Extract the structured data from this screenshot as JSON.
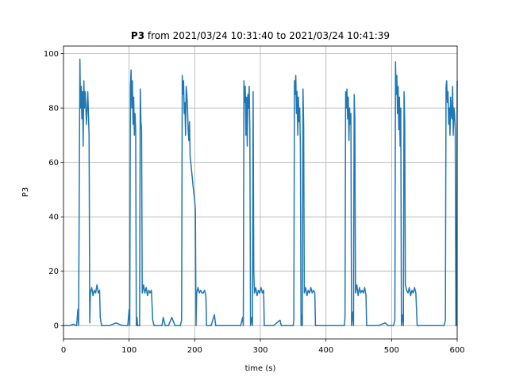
{
  "chart_data": {
    "type": "line",
    "title": {
      "bold": "P3",
      "text": "from 2021/03/24 10:31:40 to 2021/03/24 10:41:39"
    },
    "xlabel": "time (s)",
    "ylabel": "P3",
    "color": "#1f77b4",
    "grid": true,
    "xlim": [
      0,
      600
    ],
    "ylim": [
      -4.9,
      102.8
    ],
    "xticks": [
      0,
      100,
      200,
      300,
      400,
      500,
      600
    ],
    "yticks": [
      0,
      20,
      40,
      60,
      80,
      100
    ],
    "x": [
      0,
      10,
      15,
      20,
      22,
      23,
      25,
      26,
      27,
      28,
      29,
      30,
      31,
      32,
      33,
      35,
      37,
      38,
      39,
      40,
      41,
      43,
      45,
      47,
      49,
      51,
      53,
      55,
      56,
      58,
      70,
      80,
      90,
      98,
      100,
      101,
      102,
      103,
      104,
      105,
      106,
      107,
      108,
      109,
      110,
      111,
      112,
      113,
      116,
      117,
      118,
      119,
      120,
      122,
      124,
      126,
      128,
      130,
      132,
      134,
      136,
      138,
      150,
      152,
      155,
      160,
      165,
      170,
      178,
      180,
      181,
      182,
      183,
      184,
      185,
      186,
      187,
      188,
      189,
      190,
      191,
      192,
      193,
      194,
      196,
      198,
      200,
      201,
      202,
      203,
      205,
      207,
      209,
      211,
      213,
      215,
      217,
      218,
      225,
      230,
      232,
      260,
      270,
      273,
      274,
      275,
      276,
      277,
      278,
      279,
      280,
      281,
      282,
      283,
      284,
      285,
      287,
      288,
      289,
      290,
      291,
      293,
      295,
      297,
      299,
      301,
      303,
      305,
      306,
      320,
      330,
      332,
      350,
      351,
      352,
      353,
      354,
      355,
      356,
      357,
      358,
      359,
      360,
      361,
      362,
      363,
      364,
      365,
      366,
      367,
      369,
      371,
      373,
      375,
      377,
      379,
      381,
      383,
      384,
      400,
      410,
      428,
      429,
      430,
      431,
      432,
      433,
      434,
      435,
      436,
      437,
      438,
      439,
      441,
      442,
      443,
      444,
      445,
      447,
      449,
      451,
      453,
      455,
      457,
      459,
      461,
      462,
      480,
      490,
      495,
      503,
      505,
      506,
      507,
      508,
      509,
      510,
      511,
      512,
      513,
      514,
      515,
      517,
      518,
      519,
      520,
      521,
      523,
      525,
      527,
      529,
      531,
      533,
      535,
      537,
      539,
      560,
      570,
      580,
      582,
      583,
      584,
      585,
      586,
      587,
      588,
      589,
      590,
      591,
      592,
      593,
      594,
      595,
      596,
      597,
      598,
      599,
      600
    ],
    "values": [
      0,
      0,
      0.5,
      0,
      6,
      0,
      98,
      80,
      88,
      76,
      86,
      66,
      90,
      80,
      86,
      74,
      86,
      78,
      70,
      1,
      12,
      14,
      11,
      13,
      12,
      15,
      12,
      13,
      3,
      0,
      0,
      1,
      0,
      0,
      6,
      0,
      88,
      94,
      80,
      90,
      74,
      84,
      70,
      78,
      72,
      0,
      3,
      0,
      0,
      87,
      75,
      72,
      12,
      15,
      12,
      14,
      11,
      13,
      12,
      13,
      2,
      0,
      0,
      3,
      0,
      0,
      3,
      0,
      0,
      2,
      92,
      85,
      90,
      78,
      82,
      70,
      88,
      85,
      80,
      72,
      68,
      75,
      62,
      60,
      55,
      50,
      46,
      42,
      0,
      12,
      14,
      12,
      13,
      12,
      12,
      13,
      11,
      0,
      0,
      4,
      0,
      0,
      0,
      3,
      0,
      90,
      82,
      88,
      70,
      84,
      66,
      85,
      80,
      88,
      72,
      0,
      3,
      0,
      86,
      20,
      12,
      14,
      11,
      13,
      12,
      14,
      12,
      13,
      0,
      0,
      2,
      0,
      0,
      2,
      90,
      85,
      92,
      78,
      86,
      70,
      84,
      75,
      80,
      66,
      0,
      4,
      0,
      87,
      74,
      12,
      14,
      11,
      13,
      12,
      14,
      12,
      13,
      12,
      0,
      0,
      0,
      0,
      3,
      86,
      80,
      87,
      76,
      84,
      68,
      80,
      74,
      78,
      0,
      5,
      0,
      85,
      76,
      12,
      15,
      11,
      14,
      12,
      13,
      12,
      14,
      11,
      0,
      0,
      1,
      0,
      0,
      2,
      97,
      85,
      92,
      78,
      88,
      72,
      84,
      66,
      80,
      0,
      4,
      0,
      86,
      75,
      15,
      13,
      12,
      14,
      11,
      13,
      12,
      14,
      12,
      0,
      0,
      0,
      0,
      2,
      88,
      90,
      82,
      86,
      74,
      80,
      70,
      84,
      78,
      76,
      88,
      70,
      80,
      78,
      72,
      0,
      0,
      90
    ]
  }
}
